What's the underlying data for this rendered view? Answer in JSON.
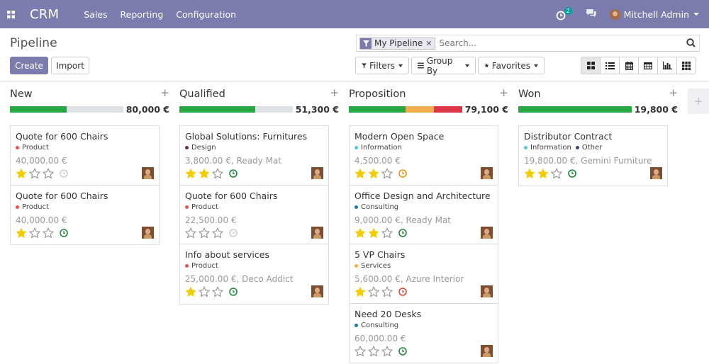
{
  "navbar": {
    "brand": "CRM",
    "menu": [
      "Sales",
      "Reporting",
      "Configuration"
    ],
    "activity_count": "2",
    "user_name": "Mitchell Admin"
  },
  "control_panel": {
    "breadcrumb": "Pipeline",
    "create_label": "Create",
    "import_label": "Import",
    "facet": "My Pipeline",
    "search_placeholder": "Search...",
    "filters_label": "Filters",
    "groupby_label": "Group By",
    "favorites_label": "Favorites",
    "views": [
      "kanban",
      "list",
      "calendar",
      "pivot",
      "graph",
      "activity"
    ],
    "active_view": "kanban"
  },
  "colors": {
    "brand": "#7c7bad",
    "progress_green": "#28a745",
    "progress_yellow": "#f0ad4e",
    "progress_red": "#dc3545",
    "star_on": "#f3cc00"
  },
  "columns": [
    {
      "title": "New",
      "total": "80,000 €",
      "progress": {
        "green": 0.5,
        "yellow": 0,
        "red": 0
      },
      "cards": [
        {
          "name": "Quote for 600 Chairs",
          "tags": [
            {
              "label": "Product",
              "color": "#e55353"
            }
          ],
          "revenue": "40,000.00 €",
          "stars": 1,
          "activity": "none"
        },
        {
          "name": "Quote for 600 Chairs",
          "tags": [
            {
              "label": "Product",
              "color": "#e55353"
            }
          ],
          "revenue": "40,000.00 €",
          "stars": 1,
          "activity": "planned"
        }
      ]
    },
    {
      "title": "Qualified",
      "total": "51,300 €",
      "progress": {
        "green": 0.67,
        "yellow": 0,
        "red": 0
      },
      "cards": [
        {
          "name": "Global Solutions: Furnitures",
          "tags": [
            {
              "label": "Design",
              "color": "#6e2a4f"
            }
          ],
          "revenue": "3,800.00 €, Ready Mat",
          "stars": 2,
          "activity": "planned"
        },
        {
          "name": "Quote for 600 Chairs",
          "tags": [
            {
              "label": "Product",
              "color": "#e55353"
            }
          ],
          "revenue": "22,500.00 €",
          "stars": 0,
          "activity": "none"
        },
        {
          "name": "Info about services",
          "tags": [
            {
              "label": "Product",
              "color": "#e55353"
            }
          ],
          "revenue": "25,000.00 €, Deco Addict",
          "stars": 1,
          "activity": "planned"
        }
      ]
    },
    {
      "title": "Proposition",
      "total": "79,100 €",
      "progress": {
        "green": 0.5,
        "yellow": 0.25,
        "red": 0.25
      },
      "cards": [
        {
          "name": "Modern Open Space",
          "tags": [
            {
              "label": "Information",
              "color": "#5bc0de"
            }
          ],
          "revenue": "4,500.00 €",
          "stars": 2,
          "activity": "today"
        },
        {
          "name": "Office Design and Architecture",
          "tags": [
            {
              "label": "Consulting",
              "color": "#1f7a99"
            }
          ],
          "revenue": "9,000.00 €, Ready Mat",
          "stars": 2,
          "activity": "planned"
        },
        {
          "name": "5 VP Chairs",
          "tags": [
            {
              "label": "Services",
              "color": "#f0ad4e"
            }
          ],
          "revenue": "5,600.00 €, Azure Interior",
          "stars": 1,
          "activity": "overdue"
        },
        {
          "name": "Need 20 Desks",
          "tags": [
            {
              "label": "Consulting",
              "color": "#1f7a99"
            }
          ],
          "revenue": "60,000.00 €",
          "stars": 0,
          "activity": "planned"
        }
      ]
    },
    {
      "title": "Won",
      "total": "19,800 €",
      "progress": {
        "green": 1.0,
        "yellow": 0,
        "red": 0
      },
      "cards": [
        {
          "name": "Distributor Contract",
          "tags": [
            {
              "label": "Information",
              "color": "#5bc0de"
            },
            {
              "label": "Other",
              "color": "#3a4a7a"
            }
          ],
          "revenue": "19,800.00 €, Gemini Furniture",
          "stars": 2,
          "activity": "planned"
        }
      ]
    }
  ]
}
